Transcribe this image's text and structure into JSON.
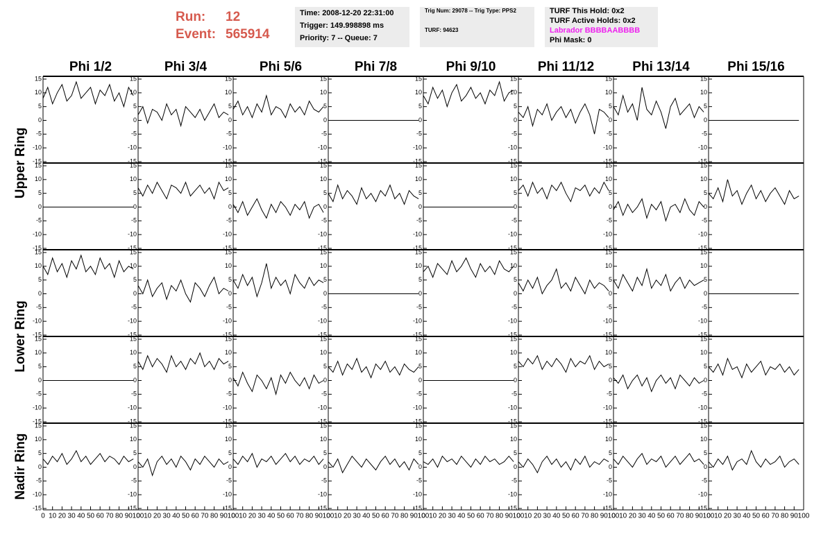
{
  "header": {
    "run_label": "Run:",
    "run": 12,
    "event_label": "Event:",
    "event": 565914,
    "time": "Time: 2008-12-20 22:31:00",
    "trigger": "Trigger: 149.998898 ms",
    "priority": "Priority: 7 -- Queue: 7",
    "trig_num": "Trig Num: 29078 -- Trig Type: PPS2",
    "turf": "TURF: 94623",
    "turf_hold": "TURF This Hold: 0x2",
    "turf_active": "TURF Active Holds: 0x2",
    "labrador": "Labrador BBBBAABBBB",
    "phi_mask": "Phi Mask: 0"
  },
  "chart_data": {
    "type": "line-grid",
    "columns": [
      "Phi 1/2",
      "Phi 3/4",
      "Phi 5/6",
      "Phi 7/8",
      "Phi 9/10",
      "Phi 11/12",
      "Phi 13/14",
      "Phi 15/16"
    ],
    "rows": [
      "Upper Ring",
      "Lower Ring",
      "Nadir Ring"
    ],
    "color": "#000000",
    "xlim": [
      0,
      100
    ],
    "xticks": [
      0,
      10,
      20,
      30,
      40,
      50,
      60,
      70,
      80,
      90,
      100
    ],
    "ylim": [
      -15,
      15
    ],
    "yticks": [
      -15,
      -10,
      -5,
      0,
      5,
      10,
      15
    ],
    "x": [
      0,
      5,
      10,
      15,
      20,
      25,
      30,
      35,
      40,
      45,
      50,
      55,
      60,
      65,
      70,
      75,
      80,
      85,
      90,
      95
    ],
    "panels": [
      [
        [
          8,
          12,
          6,
          10,
          13,
          7,
          9,
          14,
          8,
          10,
          12,
          6,
          11,
          9,
          13,
          7,
          10,
          5,
          12,
          9
        ],
        [
          2,
          5,
          -1,
          4,
          3,
          0,
          6,
          2,
          4,
          -2,
          5,
          3,
          1,
          4,
          0,
          3,
          6,
          1,
          3,
          2
        ],
        [
          4,
          7,
          2,
          5,
          1,
          6,
          3,
          9,
          2,
          5,
          4,
          1,
          6,
          3,
          5,
          2,
          7,
          4,
          3,
          5
        ],
        [
          0,
          0,
          0,
          0,
          0,
          0,
          0,
          0,
          0,
          0,
          0,
          0,
          0,
          0,
          0,
          0,
          0,
          0,
          0,
          0
        ],
        [
          9,
          6,
          12,
          8,
          11,
          5,
          10,
          13,
          7,
          9,
          12,
          8,
          10,
          6,
          11,
          9,
          14,
          7,
          10,
          11
        ],
        [
          3,
          1,
          5,
          -2,
          4,
          2,
          6,
          0,
          3,
          5,
          1,
          4,
          -1,
          3,
          6,
          2,
          -5,
          4,
          3,
          1
        ],
        [
          5,
          2,
          9,
          3,
          6,
          0,
          12,
          4,
          2,
          7,
          3,
          -3,
          5,
          8,
          2,
          4,
          6,
          1,
          5,
          3
        ],
        [
          0,
          0,
          0,
          0,
          0,
          0,
          0,
          0,
          0,
          0,
          0,
          0,
          0,
          0,
          0,
          0,
          0,
          0,
          0,
          0
        ]
      ],
      [
        [
          0,
          0,
          0,
          0,
          0,
          0,
          0,
          0,
          0,
          0,
          0,
          0,
          0,
          0,
          0,
          0,
          0,
          0,
          0,
          0
        ],
        [
          7,
          4,
          8,
          5,
          9,
          6,
          3,
          8,
          7,
          5,
          9,
          4,
          6,
          8,
          5,
          7,
          3,
          9,
          6,
          7
        ],
        [
          1,
          -2,
          2,
          -3,
          0,
          3,
          -1,
          -4,
          1,
          -2,
          2,
          0,
          -3,
          1,
          -1,
          2,
          -4,
          0,
          1,
          -2
        ],
        [
          5,
          2,
          8,
          3,
          6,
          4,
          1,
          7,
          3,
          5,
          2,
          6,
          4,
          8,
          3,
          5,
          1,
          6,
          4,
          3
        ],
        [
          0,
          0,
          0,
          0,
          0,
          0,
          0,
          0,
          0,
          0,
          0,
          0,
          0,
          0,
          0,
          0,
          0,
          0,
          0,
          0
        ],
        [
          6,
          8,
          4,
          9,
          5,
          7,
          3,
          8,
          6,
          9,
          5,
          2,
          7,
          6,
          8,
          4,
          7,
          5,
          9,
          6
        ],
        [
          -1,
          2,
          -3,
          1,
          -2,
          0,
          3,
          -4,
          1,
          -1,
          2,
          -5,
          0,
          1,
          -2,
          3,
          -1,
          -3,
          2,
          0
        ],
        [
          5,
          3,
          7,
          2,
          10,
          4,
          6,
          1,
          5,
          8,
          3,
          6,
          2,
          5,
          7,
          4,
          1,
          6,
          3,
          4
        ]
      ],
      [
        [
          10,
          7,
          13,
          8,
          11,
          6,
          12,
          9,
          14,
          8,
          10,
          7,
          13,
          9,
          11,
          6,
          12,
          8,
          10,
          9
        ],
        [
          3,
          0,
          5,
          -1,
          2,
          4,
          -2,
          3,
          1,
          5,
          0,
          -3,
          4,
          2,
          -1,
          3,
          6,
          0,
          2,
          1
        ],
        [
          5,
          2,
          7,
          3,
          6,
          -1,
          4,
          11,
          2,
          6,
          3,
          5,
          0,
          7,
          4,
          2,
          6,
          3,
          5,
          4
        ],
        [
          0,
          0,
          0,
          0,
          0,
          0,
          0,
          0,
          0,
          0,
          0,
          0,
          0,
          0,
          0,
          0,
          0,
          0,
          0,
          0
        ],
        [
          8,
          10,
          6,
          11,
          9,
          7,
          12,
          8,
          10,
          13,
          9,
          6,
          11,
          8,
          10,
          7,
          12,
          9,
          8,
          10
        ],
        [
          4,
          1,
          5,
          2,
          6,
          0,
          3,
          5,
          9,
          2,
          4,
          1,
          6,
          3,
          0,
          5,
          2,
          4,
          3,
          1
        ],
        [
          5,
          2,
          7,
          4,
          1,
          6,
          3,
          9,
          2,
          5,
          3,
          7,
          1,
          4,
          6,
          2,
          5,
          3,
          4,
          5
        ],
        [
          0,
          0,
          0,
          0,
          0,
          0,
          0,
          0,
          0,
          0,
          0,
          0,
          0,
          0,
          0,
          0,
          0,
          0,
          0,
          0
        ]
      ],
      [
        [
          0,
          0,
          0,
          0,
          0,
          0,
          0,
          0,
          0,
          0,
          0,
          0,
          0,
          0,
          0,
          0,
          0,
          0,
          0,
          0
        ],
        [
          7,
          4,
          9,
          5,
          8,
          6,
          3,
          9,
          5,
          7,
          4,
          8,
          6,
          10,
          5,
          7,
          4,
          8,
          6,
          7
        ],
        [
          1,
          -2,
          3,
          -1,
          -4,
          2,
          0,
          -3,
          1,
          -5,
          2,
          -1,
          3,
          0,
          -2,
          1,
          -3,
          2,
          -1,
          0
        ],
        [
          5,
          3,
          7,
          2,
          6,
          4,
          8,
          3,
          5,
          1,
          6,
          4,
          7,
          3,
          5,
          2,
          6,
          4,
          3,
          5
        ],
        [
          0,
          0,
          0,
          0,
          0,
          0,
          0,
          0,
          0,
          0,
          0,
          0,
          0,
          0,
          0,
          0,
          0,
          0,
          0,
          0
        ],
        [
          7,
          5,
          8,
          6,
          9,
          4,
          7,
          5,
          8,
          6,
          3,
          8,
          5,
          7,
          6,
          9,
          4,
          7,
          5,
          6
        ],
        [
          1,
          -1,
          2,
          -3,
          0,
          2,
          -2,
          1,
          -4,
          0,
          2,
          -1,
          1,
          -3,
          2,
          0,
          -2,
          1,
          -1,
          0
        ],
        [
          5,
          3,
          6,
          2,
          8,
          4,
          5,
          1,
          6,
          3,
          5,
          7,
          2,
          5,
          4,
          6,
          3,
          5,
          2,
          4
        ]
      ],
      [
        [
          3,
          1,
          4,
          2,
          5,
          1,
          3,
          6,
          2,
          4,
          1,
          3,
          5,
          2,
          4,
          3,
          1,
          4,
          2,
          3
        ],
        [
          2,
          0,
          3,
          -3,
          2,
          4,
          1,
          3,
          0,
          4,
          2,
          -1,
          3,
          1,
          4,
          2,
          0,
          3,
          1,
          2
        ],
        [
          3,
          1,
          4,
          2,
          5,
          0,
          3,
          2,
          4,
          1,
          3,
          5,
          2,
          4,
          1,
          3,
          2,
          4,
          1,
          3
        ],
        [
          2,
          0,
          3,
          -2,
          1,
          4,
          2,
          0,
          3,
          1,
          -1,
          2,
          4,
          1,
          3,
          0,
          2,
          -1,
          3,
          1
        ],
        [
          2,
          1,
          3,
          0,
          4,
          2,
          3,
          1,
          4,
          2,
          0,
          3,
          1,
          4,
          2,
          3,
          1,
          2,
          4,
          2
        ],
        [
          2,
          0,
          3,
          1,
          -2,
          2,
          4,
          1,
          3,
          0,
          2,
          -1,
          3,
          1,
          4,
          0,
          2,
          1,
          3,
          2
        ],
        [
          3,
          1,
          4,
          2,
          0,
          3,
          5,
          1,
          3,
          2,
          4,
          0,
          2,
          4,
          1,
          3,
          5,
          2,
          3,
          1
        ],
        [
          2,
          0,
          3,
          1,
          4,
          -1,
          2,
          3,
          1,
          6,
          2,
          0,
          3,
          1,
          2,
          4,
          0,
          2,
          3,
          1
        ]
      ]
    ]
  }
}
